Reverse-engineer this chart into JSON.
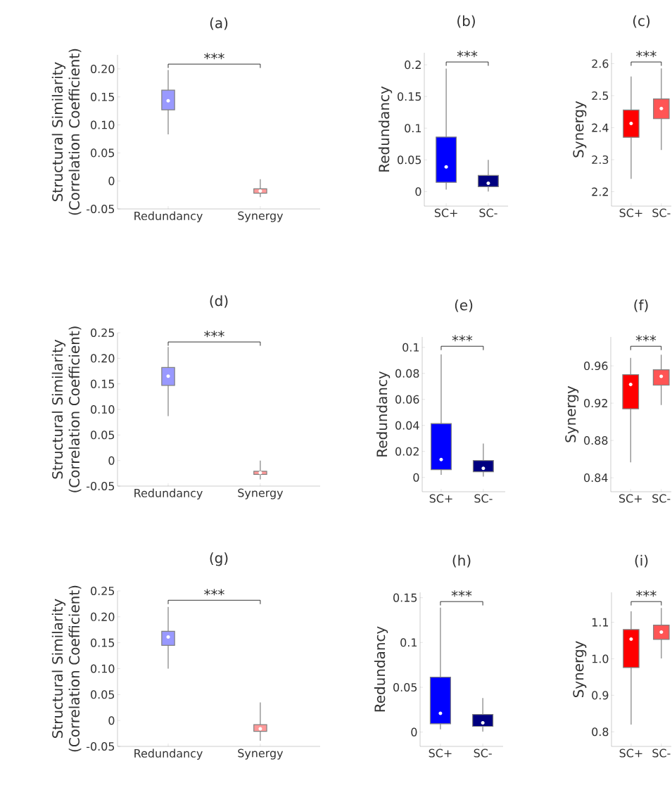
{
  "chart_data": [
    {
      "type": "box",
      "title": "(a)",
      "ylabel": "Structural Similarity (Correlation Coefficient)",
      "categories": [
        "Redundancy",
        "Synergy"
      ],
      "colors": [
        "#9999ff",
        "#ff9999"
      ],
      "boxes": [
        {
          "low": 0.083,
          "q1": 0.127,
          "median": 0.143,
          "q3": 0.162,
          "high": 0.198
        },
        {
          "low": -0.029,
          "q1": -0.022,
          "median": -0.018,
          "q3": -0.014,
          "high": 0.003
        }
      ],
      "ylim": [
        -0.05,
        0.225
      ],
      "yticks": [
        -0.05,
        0,
        0.05,
        {
          "value": 0.1,
          "label": "0.10"
        },
        0.15,
        {
          "value": 0.2,
          "label": "0.20"
        }
      ],
      "annotations": [
        "***"
      ]
    },
    {
      "type": "box",
      "title": "(b)",
      "ylabel": "Redundancy",
      "categories": [
        "SC+",
        "SC-"
      ],
      "colors": [
        "#0000ff",
        "#000080"
      ],
      "boxes": [
        {
          "low": 0.003,
          "q1": 0.0145,
          "median": 0.039,
          "q3": 0.086,
          "high": 0.194
        },
        {
          "low": 0.0,
          "q1": 0.0076,
          "median": 0.013,
          "q3": 0.0255,
          "high": 0.05
        }
      ],
      "ylim": [
        -0.023,
        0.219
      ],
      "yticks": [
        0,
        0.05,
        0.1,
        0.15,
        0.2
      ],
      "annotations": [
        "***"
      ]
    },
    {
      "type": "box",
      "title": "(c)",
      "ylabel": "Synergy",
      "categories": [
        "SC+",
        "SC-"
      ],
      "colors": [
        "#ff0000",
        "#ff5555"
      ],
      "boxes": [
        {
          "low": 2.24,
          "q1": 2.37,
          "median": 2.413,
          "q3": 2.455,
          "high": 2.56
        },
        {
          "low": 2.33,
          "q1": 2.428,
          "median": 2.46,
          "q3": 2.49,
          "high": 2.585
        }
      ],
      "ylim": [
        2.155,
        2.634
      ],
      "yticks": [
        2.2,
        2.3,
        2.4,
        2.5,
        2.6
      ],
      "annotations": [
        "***"
      ]
    },
    {
      "type": "box",
      "title": "(d)",
      "ylabel": "Structural Similarity (Correlation Coefficient)",
      "categories": [
        "Redundancy",
        "Synergy"
      ],
      "colors": [
        "#9999ff",
        "#ff9999"
      ],
      "boxes": [
        {
          "low": 0.087,
          "q1": 0.147,
          "median": 0.165,
          "q3": 0.182,
          "high": 0.222
        },
        {
          "low": -0.037,
          "q1": -0.027,
          "median": -0.024,
          "q3": -0.021,
          "high": 0.0
        }
      ],
      "ylim": [
        -0.05,
        0.25
      ],
      "yticks": [
        -0.05,
        0,
        0.05,
        {
          "value": 0.1,
          "label": "0.10"
        },
        0.15,
        {
          "value": 0.2,
          "label": "0.20"
        },
        0.25
      ],
      "annotations": [
        "***"
      ]
    },
    {
      "type": "box",
      "title": "(e)",
      "ylabel": "Redundancy",
      "categories": [
        "SC+",
        "SC-"
      ],
      "colors": [
        "#0000ff",
        "#000080"
      ],
      "boxes": [
        {
          "low": 0.002,
          "q1": 0.006,
          "median": 0.0138,
          "q3": 0.0414,
          "high": 0.0946
        },
        {
          "low": 0.0007,
          "q1": 0.0044,
          "median": 0.007,
          "q3": 0.013,
          "high": 0.026
        }
      ],
      "ylim": [
        -0.011,
        0.108
      ],
      "yticks": [
        0,
        0.02,
        0.04,
        0.06,
        0.08,
        0.1
      ],
      "annotations": [
        "***"
      ]
    },
    {
      "type": "box",
      "title": "(f)",
      "ylabel": "Synergy",
      "categories": [
        "SC+",
        "SC-"
      ],
      "colors": [
        "#ff0000",
        "#ff5555"
      ],
      "boxes": [
        {
          "low": 0.8565,
          "q1": 0.914,
          "median": 0.94,
          "q3": 0.9506,
          "high": 0.9685
        },
        {
          "low": 0.918,
          "q1": 0.9393,
          "median": 0.9487,
          "q3": 0.9558,
          "high": 0.972
        }
      ],
      "ylim": [
        0.825,
        0.991
      ],
      "yticks": [
        0.84,
        0.88,
        0.92,
        0.96
      ],
      "annotations": [
        "***"
      ]
    },
    {
      "type": "box",
      "title": "(g)",
      "ylabel": "Structural Similarity (Correlation Coefficient)",
      "categories": [
        "Redundancy",
        "Synergy"
      ],
      "colors": [
        "#9999ff",
        "#ff9999"
      ],
      "boxes": [
        {
          "low": 0.1,
          "q1": 0.145,
          "median": 0.161,
          "q3": 0.172,
          "high": 0.219
        },
        {
          "low": -0.039,
          "q1": -0.021,
          "median": -0.016,
          "q3": -0.008,
          "high": 0.035
        }
      ],
      "ylim": [
        -0.05,
        0.25
      ],
      "yticks": [
        -0.05,
        0,
        0.05,
        {
          "value": 0.1,
          "label": "0.10"
        },
        0.15,
        {
          "value": 0.2,
          "label": "0.20"
        },
        0.25
      ],
      "annotations": [
        "***"
      ]
    },
    {
      "type": "box",
      "title": "(h)",
      "ylabel": "Redundancy",
      "categories": [
        "SC+",
        "SC-"
      ],
      "colors": [
        "#0000ff",
        "#000080"
      ],
      "boxes": [
        {
          "low": 0.003,
          "q1": 0.0093,
          "median": 0.021,
          "q3": 0.0613,
          "high": 0.139
        },
        {
          "low": 0.0005,
          "q1": 0.0064,
          "median": 0.0103,
          "q3": 0.0196,
          "high": 0.038
        }
      ],
      "ylim": [
        -0.016,
        0.156
      ],
      "yticks": [
        0,
        0.05,
        0.1,
        0.15
      ],
      "annotations": [
        "***"
      ]
    },
    {
      "type": "box",
      "title": "(i)",
      "ylabel": "Synergy",
      "categories": [
        "SC+",
        "SC-"
      ],
      "colors": [
        "#ff0000",
        "#ff5555"
      ],
      "boxes": [
        {
          "low": 0.82,
          "q1": 0.976,
          "median": 1.054,
          "q3": 1.08,
          "high": 1.13
        },
        {
          "low": 1.001,
          "q1": 1.053,
          "median": 1.073,
          "q3": 1.092,
          "high": 1.139
        }
      ],
      "ylim": [
        0.76,
        1.182
      ],
      "yticks": [
        0.8,
        0.9,
        {
          "value": 1.0,
          "label": "1.0"
        },
        1.1
      ],
      "annotations": [
        "***"
      ]
    }
  ]
}
